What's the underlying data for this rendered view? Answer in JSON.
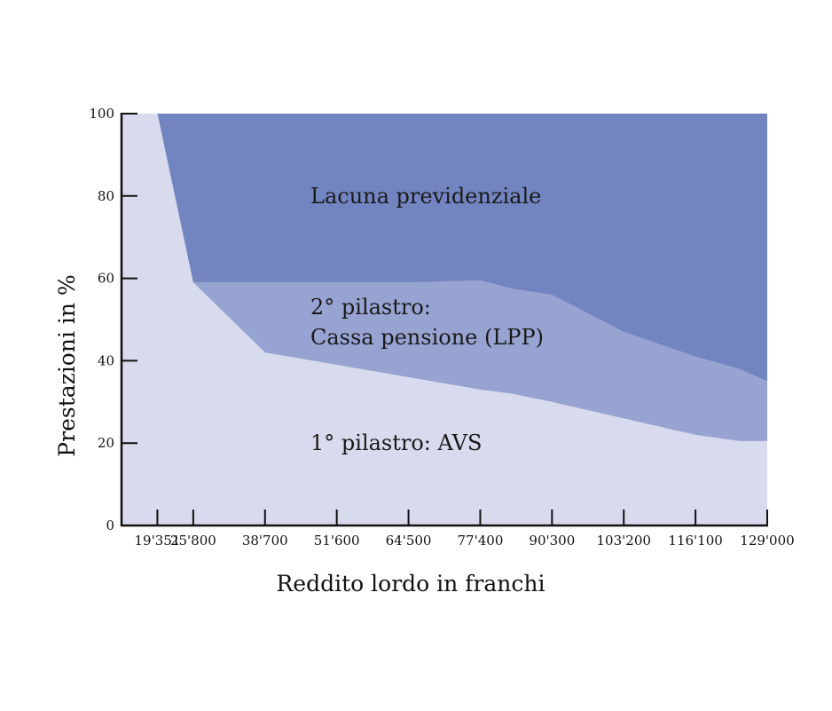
{
  "chart_data": {
    "type": "area",
    "xlabel": "Reddito lordo in franchi",
    "ylabel": "Prestazioni in %",
    "ylim": [
      0,
      100
    ],
    "y_ticks": [
      "0",
      "20",
      "40",
      "60",
      "80",
      "100"
    ],
    "x_ticks": [
      "19'351",
      "25'800",
      "38'700",
      "51'600",
      "64'500",
      "77'400",
      "90'300",
      "103'200",
      "116'100",
      "129'000"
    ],
    "x": [
      12900,
      19351,
      25800,
      38700,
      51600,
      64500,
      77400,
      83000,
      90300,
      103200,
      116100,
      124000,
      129000
    ],
    "series": [
      {
        "name": "1° pilastro: AVS",
        "values": [
          100,
          100,
          59,
          42,
          39,
          36,
          33,
          32,
          30,
          26,
          22,
          20.5,
          20.5
        ]
      },
      {
        "name": "2° pilastro: Cassa pensione (LPP)",
        "values": [
          0,
          0,
          0,
          17,
          20,
          23,
          26.5,
          25.5,
          26,
          21,
          19,
          17.5,
          14.5
        ]
      },
      {
        "name": "Lacuna previdenziale",
        "values": [
          0,
          0,
          41,
          41,
          41,
          41,
          40.5,
          42.5,
          44,
          53,
          59,
          62,
          65
        ]
      }
    ],
    "region_labels": {
      "gap": "Lacuna previdenziale",
      "pillar2_line1": "2° pilastro:",
      "pillar2_line2": "Cassa pensione (LPP)",
      "pillar1": "1° pilastro: AVS"
    },
    "colors": {
      "pillar1": "#d8dbee",
      "pillar2": "#97a3d1",
      "gap": "#7285c1",
      "axis": "#111111"
    }
  }
}
